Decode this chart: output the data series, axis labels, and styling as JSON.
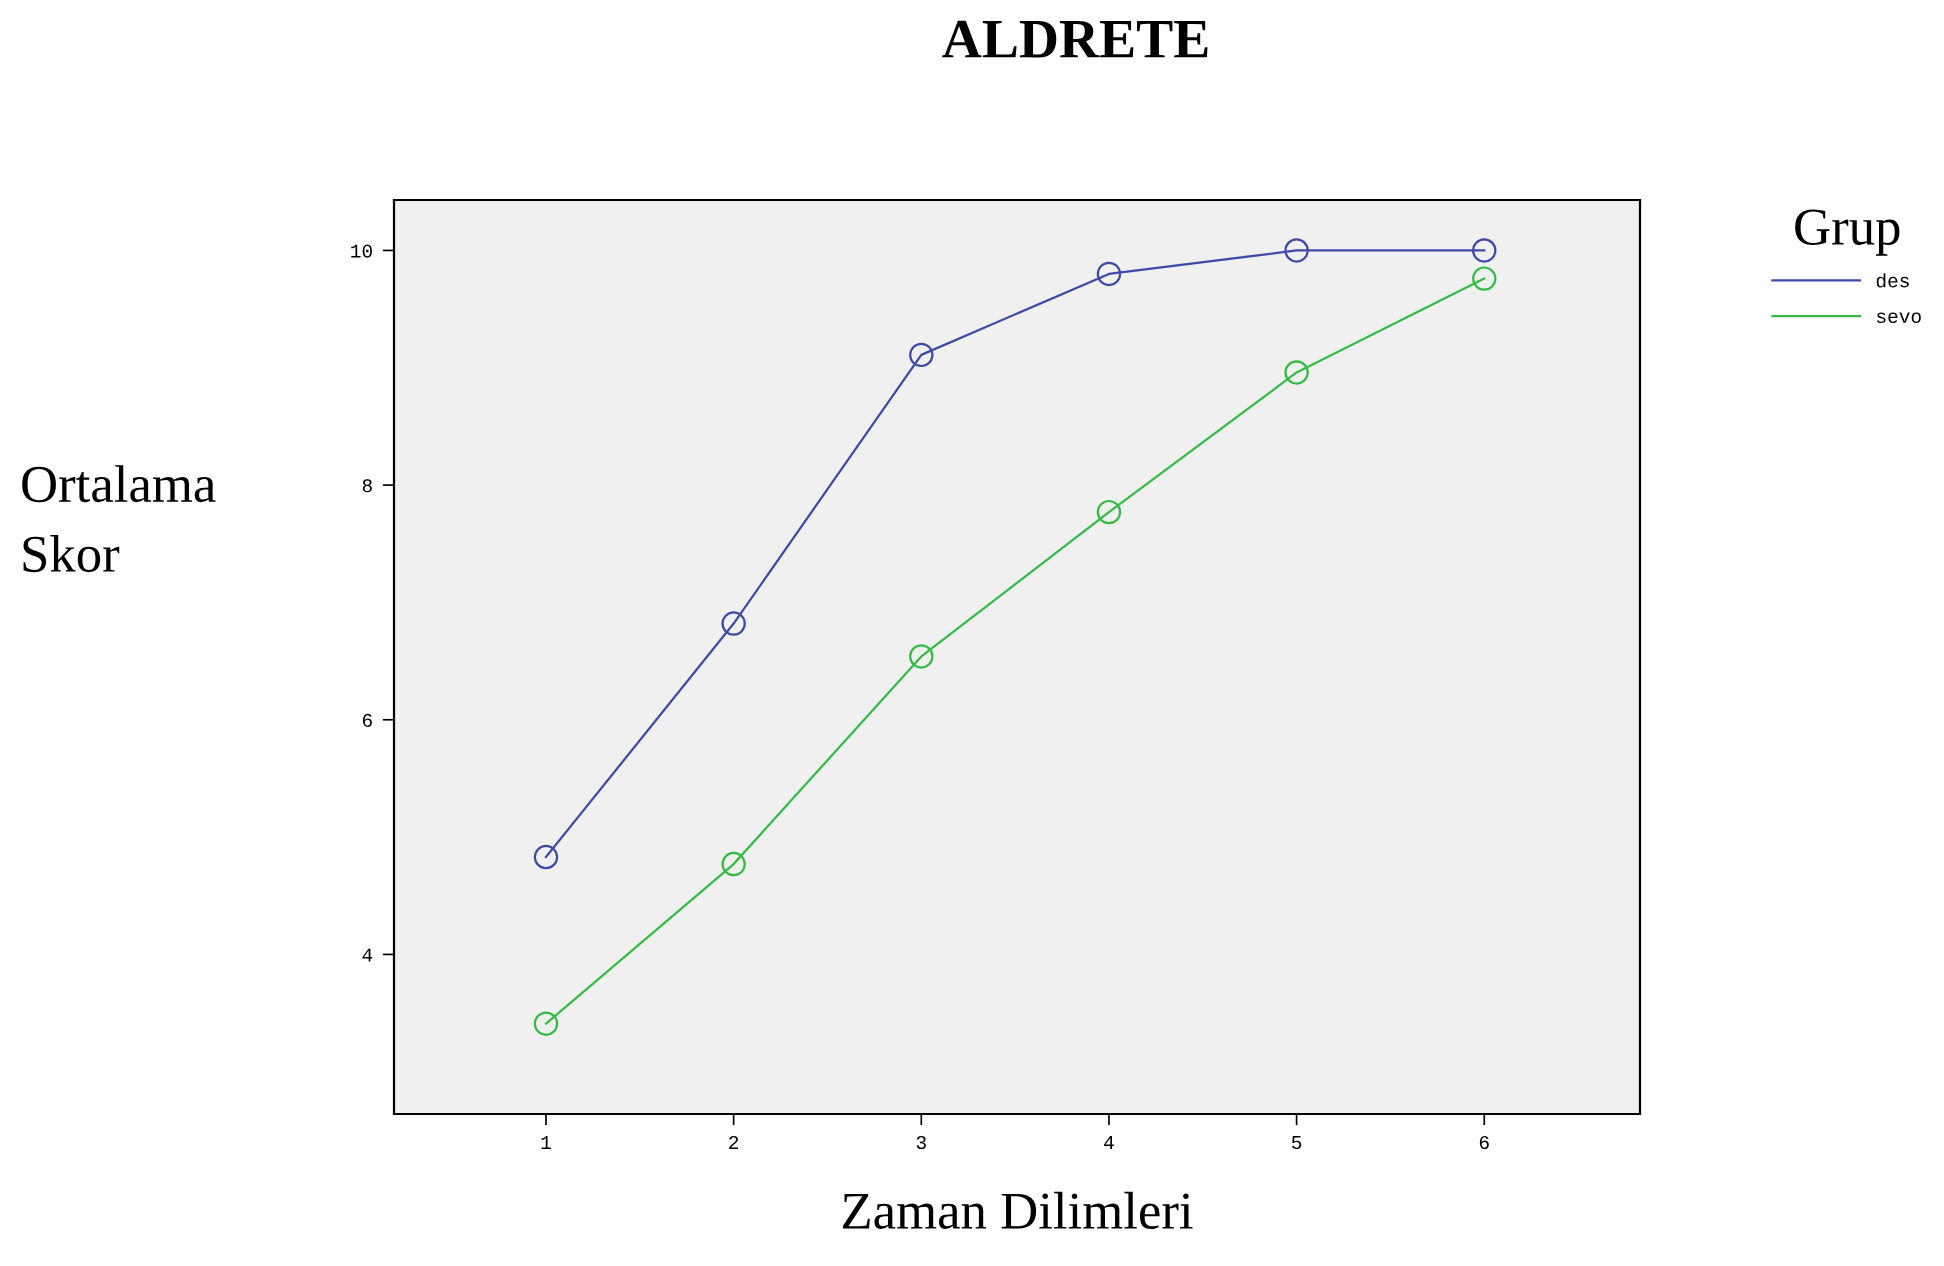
{
  "chart_data": {
    "type": "line",
    "title": "ALDRETE",
    "xlabel": "Zaman Dilimleri",
    "ylabel": "Ortalama\nSkor",
    "legend_title": "Grup",
    "x": [
      1,
      2,
      3,
      4,
      5,
      6
    ],
    "series": [
      {
        "name": "des",
        "color": "#3d4aa8",
        "values": [
          4.83,
          6.82,
          9.11,
          9.8,
          10.0,
          10.0
        ]
      },
      {
        "name": "sevo",
        "color": "#33bb44",
        "values": [
          3.41,
          4.77,
          6.54,
          7.77,
          8.96,
          9.76
        ]
      }
    ],
    "xlim": [
      0.19,
      6.83
    ],
    "ylim": [
      2.64,
      10.43
    ],
    "xticks": [
      1,
      2,
      3,
      4,
      5,
      6
    ],
    "yticks": [
      4,
      6,
      8,
      10
    ],
    "marker": "circle",
    "line_style": "solid",
    "grid": false,
    "legend": "top right"
  }
}
